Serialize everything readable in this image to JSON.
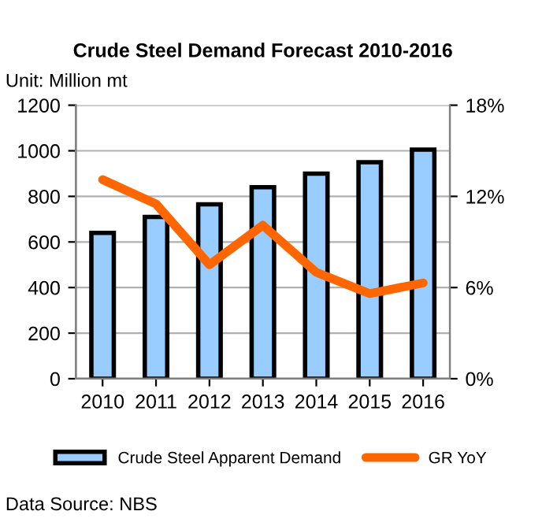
{
  "chart_data": {
    "type": "bar",
    "title": "Crude Steel Demand Forecast 2010-2016",
    "categories": [
      "2010",
      "2011",
      "2012",
      "2013",
      "2014",
      "2015",
      "2016"
    ],
    "series": [
      {
        "name": "Crude Steel Apparent Demand",
        "color": "#99ccff",
        "values": [
          640,
          710,
          765,
          840,
          900,
          950,
          1005
        ]
      },
      {
        "name": "GR YoY",
        "type": "line",
        "axis": "y2",
        "color": "#ff6600",
        "values": [
          13.1,
          11.5,
          7.5,
          10.1,
          7.0,
          5.6,
          6.3
        ]
      }
    ],
    "ylim": [
      0,
      1200
    ],
    "yticks": [
      0,
      200,
      400,
      600,
      800,
      1000,
      1200
    ],
    "y2lim": [
      0,
      18
    ],
    "y2ticks": [
      {
        "value": 0,
        "label": "0%"
      },
      {
        "value": 6,
        "label": "6%"
      },
      {
        "value": 12,
        "label": "12%"
      },
      {
        "value": 18,
        "label": "18%"
      }
    ],
    "grid": "y",
    "legend": "bottom",
    "annotations": [
      "Unit: Million mt",
      "Data Source: NBS"
    ]
  }
}
